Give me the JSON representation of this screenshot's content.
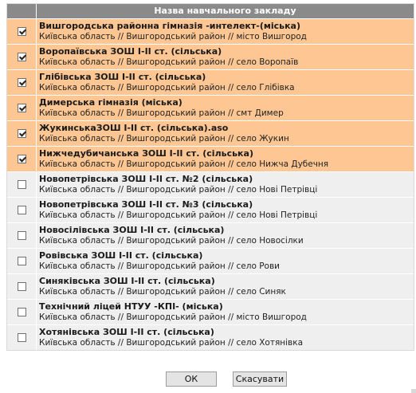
{
  "table": {
    "header": "Назва навчального закладу",
    "rows": [
      {
        "name": "Вишгородська районна гімназія -интелект-(міська)",
        "location": "Київська область // Вишгородський район // місто Вишгород",
        "checked": true
      },
      {
        "name": "Воропаївська ЗОШ І-ІІ ст. (сільська)",
        "location": "Київська область // Вишгородський район // село Воропаїв",
        "checked": true
      },
      {
        "name": "Глібівська ЗОШ І-ІІ ст. (сільська)",
        "location": "Київська область // Вишгородський район // село Глібівка",
        "checked": true
      },
      {
        "name": "Димерська гімназія (міська)",
        "location": "Київська область // Вишгородський район // смт Димер",
        "checked": true
      },
      {
        "name": "ЖукинськаЗОШ І-ІІ ст. (сільська).aso",
        "location": "Київська область // Вишгородський район // село Жукин",
        "checked": true
      },
      {
        "name": "Нижчедубичанська ЗОШ І-ІІ ст. (сільська)",
        "location": "Київська область // Вишгородський район // село Нижча Дубечня",
        "checked": true
      },
      {
        "name": "Новопетрівська ЗОШ І-ІІ ст. №2 (сільська)",
        "location": "Київська область // Вишгородський район // село Нові Петрівці",
        "checked": false
      },
      {
        "name": "Новопетрівська ЗОШ І-ІІ ст. №3 (сільська)",
        "location": "Київська область // Вишгородський район // село Нові Петрівці",
        "checked": false
      },
      {
        "name": "Новосілівська ЗОШ І-ІІ ст. (сільська)",
        "location": "Київська область // Вишгородський район // село Новосілки",
        "checked": false
      },
      {
        "name": "Ровівська ЗОШ І-ІІ ст. (сільська)",
        "location": "Київська область // Вишгородський район // село Рови",
        "checked": false
      },
      {
        "name": "Синяківська ЗОШ І-ІІ ст. (сільська)",
        "location": "Київська область // Вишгородський район // село Синяк",
        "checked": false
      },
      {
        "name": "Технічний ліцей НТУУ -КПІ- (міська)",
        "location": "Київська область // Вишгородський район // місто Вишгород",
        "checked": false
      },
      {
        "name": "Хотянівська ЗОШ І-ІІ ст. (сільська)",
        "location": "Київська область // Вишгородський район // село Хотянівка",
        "checked": false
      }
    ]
  },
  "buttons": {
    "ok_label": "ОК",
    "cancel_label": "Скасувати"
  },
  "colors": {
    "header_bg": "#8a8a8a",
    "selected_row_bg": "#fdc692",
    "unselected_row_bg": "#efefef"
  },
  "icons": {
    "checkbox": "checkbox-icon"
  }
}
